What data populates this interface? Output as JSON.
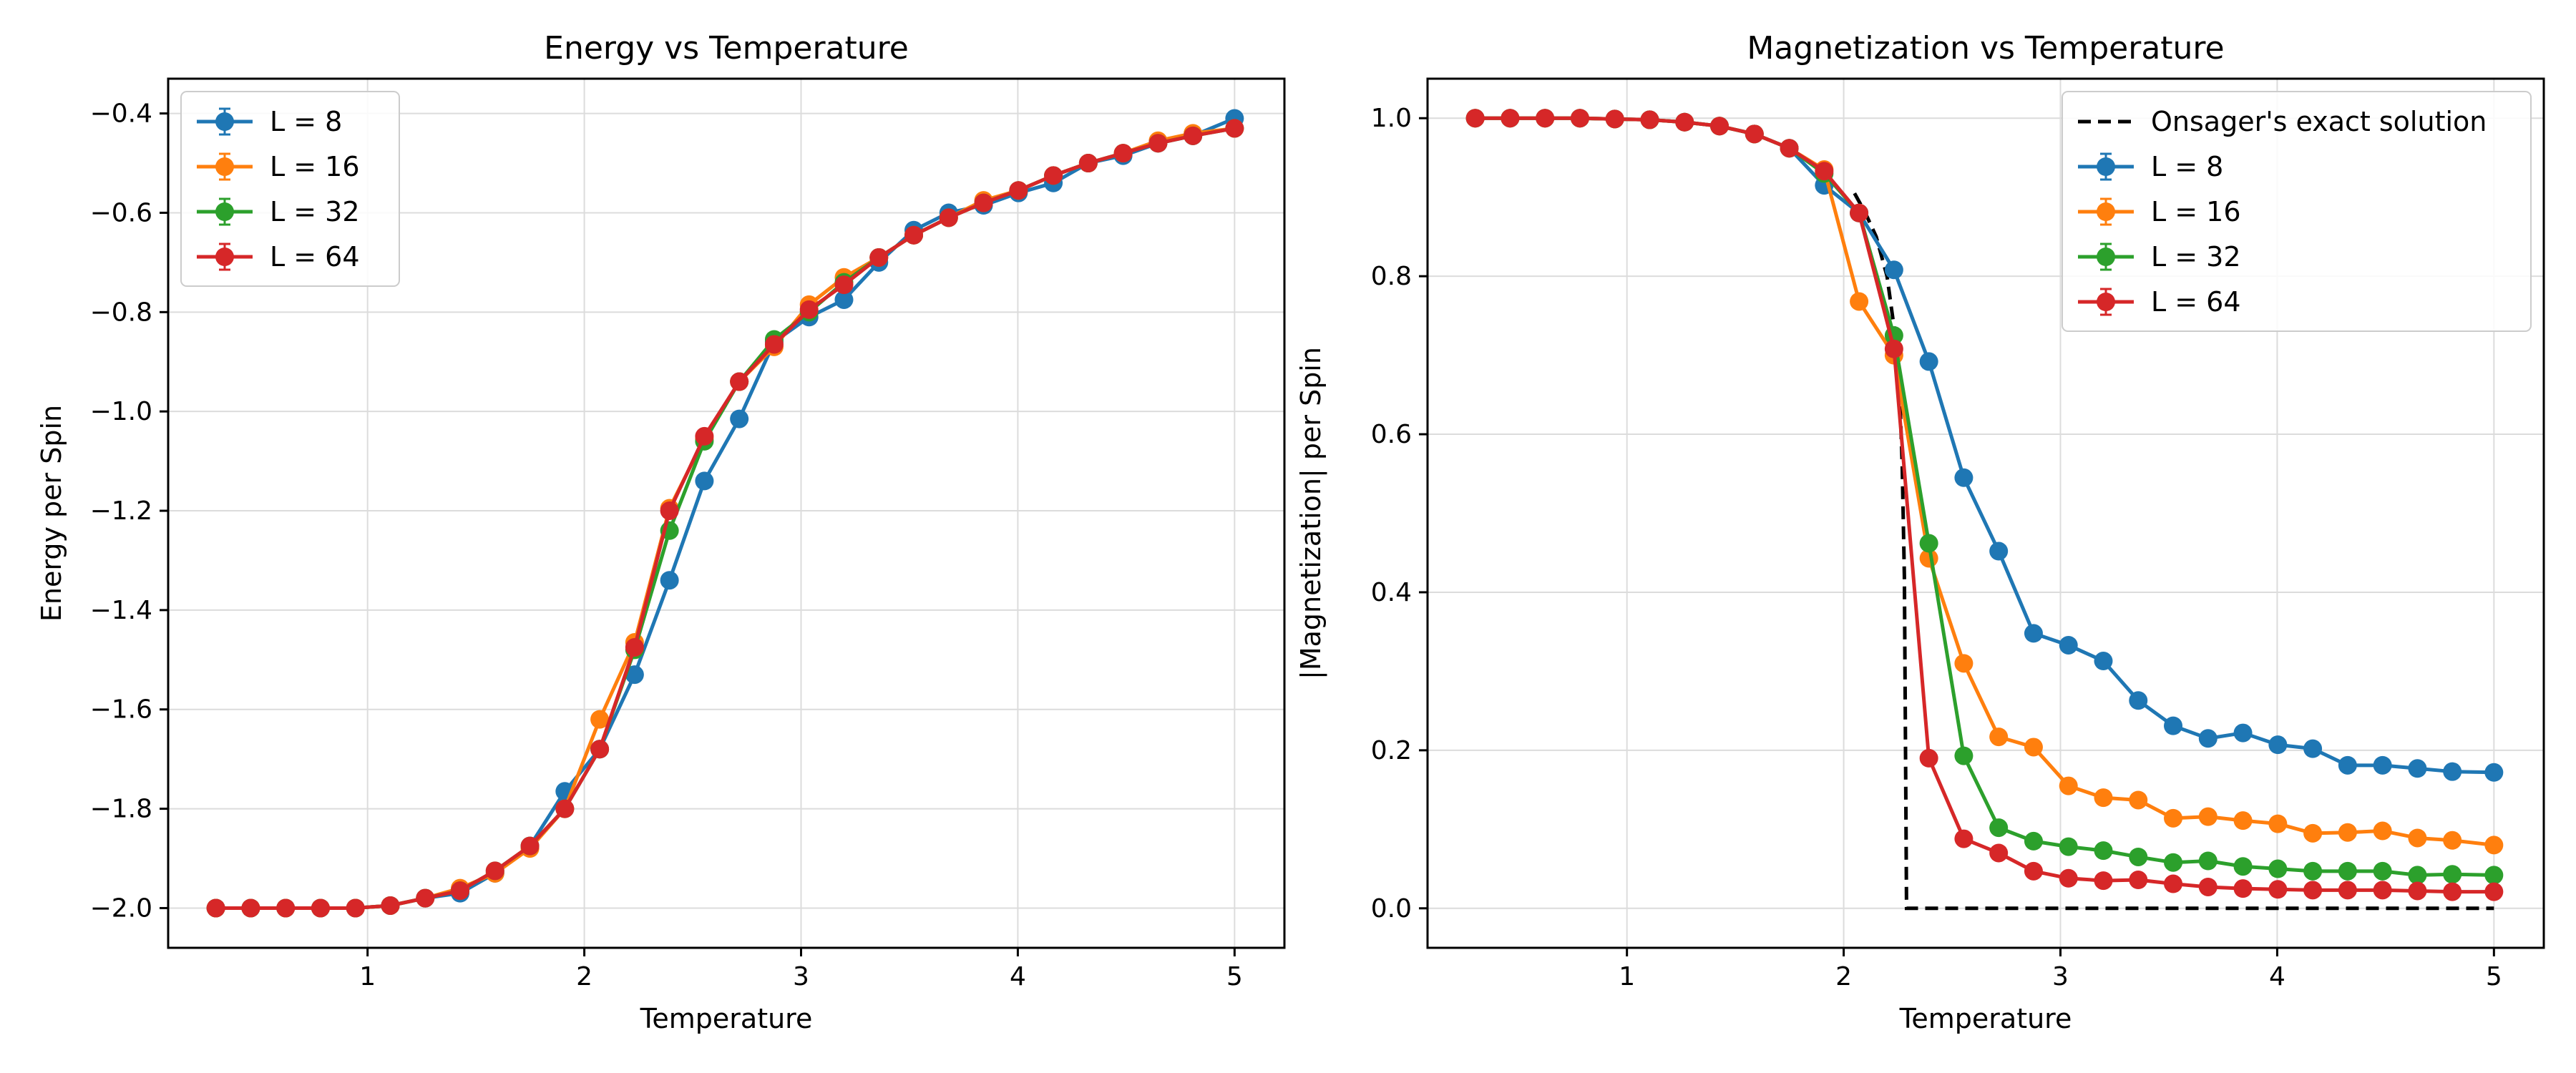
{
  "chart_data": [
    {
      "type": "line",
      "title": "Energy vs Temperature",
      "xlabel": "Temperature",
      "ylabel": "Energy per Spin",
      "xlim": [
        0.08,
        5.23
      ],
      "ylim": [
        -2.08,
        -0.33
      ],
      "xticks": [
        1,
        2,
        3,
        4,
        5
      ],
      "yticks": [
        -2.0,
        -1.8,
        -1.6,
        -1.4,
        -1.2,
        -1.0,
        -0.8,
        -0.6,
        -0.4
      ],
      "ytick_labels": [
        "−2.0",
        "−1.8",
        "−1.6",
        "−1.4",
        "−1.2",
        "−1.0",
        "−0.8",
        "−0.6",
        "−0.4"
      ],
      "grid": true,
      "legend_position": "top-left",
      "x": [
        0.3,
        0.461,
        0.622,
        0.783,
        0.944,
        1.105,
        1.266,
        1.427,
        1.588,
        1.749,
        1.91,
        2.071,
        2.232,
        2.393,
        2.554,
        2.715,
        2.876,
        3.037,
        3.198,
        3.359,
        3.52,
        3.681,
        3.842,
        4.003,
        4.164,
        4.325,
        4.486,
        4.647,
        4.808,
        5.0
      ],
      "series": [
        {
          "name": "L = 8",
          "color": "#1f77b4",
          "values": [
            -2.0,
            -2.0,
            -2.0,
            -2.0,
            -2.0,
            -1.995,
            -1.98,
            -1.97,
            -1.93,
            -1.875,
            -1.765,
            -1.68,
            -1.53,
            -1.34,
            -1.14,
            -1.015,
            -0.86,
            -0.81,
            -0.775,
            -0.7,
            -0.635,
            -0.6,
            -0.585,
            -0.56,
            -0.54,
            -0.5,
            -0.485,
            -0.46,
            -0.445,
            -0.41
          ]
        },
        {
          "name": "L = 16",
          "color": "#ff7f0e",
          "values": [
            -2.0,
            -2.0,
            -2.0,
            -2.0,
            -2.0,
            -1.995,
            -1.98,
            -1.96,
            -1.93,
            -1.88,
            -1.8,
            -1.62,
            -1.465,
            -1.195,
            -1.055,
            -0.94,
            -0.87,
            -0.785,
            -0.73,
            -0.69,
            -0.645,
            -0.61,
            -0.575,
            -0.555,
            -0.525,
            -0.5,
            -0.48,
            -0.455,
            -0.44,
            -0.43
          ]
        },
        {
          "name": "L = 32",
          "color": "#2ca02c",
          "values": [
            -2.0,
            -2.0,
            -2.0,
            -2.0,
            -2.0,
            -1.995,
            -1.98,
            -1.965,
            -1.925,
            -1.875,
            -1.8,
            -1.68,
            -1.48,
            -1.24,
            -1.06,
            -0.94,
            -0.855,
            -0.8,
            -0.74,
            -0.69,
            -0.645,
            -0.61,
            -0.58,
            -0.555,
            -0.525,
            -0.5,
            -0.48,
            -0.46,
            -0.445,
            -0.43
          ]
        },
        {
          "name": "L = 64",
          "color": "#d62728",
          "values": [
            -2.0,
            -2.0,
            -2.0,
            -2.0,
            -2.0,
            -1.995,
            -1.98,
            -1.965,
            -1.925,
            -1.875,
            -1.8,
            -1.68,
            -1.475,
            -1.2,
            -1.05,
            -0.94,
            -0.865,
            -0.795,
            -0.745,
            -0.69,
            -0.645,
            -0.61,
            -0.58,
            -0.555,
            -0.525,
            -0.5,
            -0.48,
            -0.46,
            -0.445,
            -0.43
          ]
        }
      ]
    },
    {
      "type": "line",
      "title": "Magnetization vs Temperature",
      "xlabel": "Temperature",
      "ylabel": "|Magnetization| per Spin",
      "xlim": [
        0.08,
        5.23
      ],
      "ylim": [
        -0.05,
        1.05
      ],
      "xticks": [
        1,
        2,
        3,
        4,
        5
      ],
      "yticks": [
        0.0,
        0.2,
        0.4,
        0.6,
        0.8,
        1.0
      ],
      "ytick_labels": [
        "0.0",
        "0.2",
        "0.4",
        "0.6",
        "0.8",
        "1.0"
      ],
      "grid": true,
      "legend_position": "top-right",
      "x": [
        0.3,
        0.461,
        0.622,
        0.783,
        0.944,
        1.105,
        1.266,
        1.427,
        1.588,
        1.749,
        1.91,
        2.071,
        2.232,
        2.393,
        2.554,
        2.715,
        2.876,
        3.037,
        3.198,
        3.359,
        3.52,
        3.681,
        3.842,
        4.003,
        4.164,
        4.325,
        4.486,
        4.647,
        4.808,
        5.0
      ],
      "series": [
        {
          "name": "L = 8",
          "color": "#1f77b4",
          "values": [
            1.0,
            1.0,
            1.0,
            1.0,
            0.999,
            0.998,
            0.995,
            0.99,
            0.98,
            0.962,
            0.915,
            0.88,
            0.808,
            0.692,
            0.545,
            0.452,
            0.348,
            0.333,
            0.313,
            0.263,
            0.231,
            0.215,
            0.222,
            0.207,
            0.202,
            0.181,
            0.181,
            0.177,
            0.173,
            0.172
          ]
        },
        {
          "name": "L = 16",
          "color": "#ff7f0e",
          "values": [
            1.0,
            1.0,
            1.0,
            1.0,
            0.999,
            0.998,
            0.995,
            0.99,
            0.98,
            0.962,
            0.935,
            0.768,
            0.7,
            0.443,
            0.31,
            0.217,
            0.204,
            0.155,
            0.14,
            0.137,
            0.114,
            0.116,
            0.111,
            0.107,
            0.095,
            0.096,
            0.098,
            0.089,
            0.086,
            0.08
          ]
        },
        {
          "name": "L = 32",
          "color": "#2ca02c",
          "values": [
            1.0,
            1.0,
            1.0,
            1.0,
            0.999,
            0.998,
            0.995,
            0.99,
            0.98,
            0.962,
            0.93,
            0.88,
            0.725,
            0.462,
            0.193,
            0.102,
            0.085,
            0.078,
            0.073,
            0.065,
            0.058,
            0.06,
            0.053,
            0.05,
            0.047,
            0.047,
            0.047,
            0.042,
            0.043,
            0.042
          ]
        },
        {
          "name": "L = 64",
          "color": "#d62728",
          "values": [
            1.0,
            1.0,
            1.0,
            1.0,
            0.999,
            0.998,
            0.995,
            0.99,
            0.98,
            0.962,
            0.933,
            0.88,
            0.708,
            0.19,
            0.088,
            0.07,
            0.047,
            0.038,
            0.035,
            0.036,
            0.031,
            0.027,
            0.025,
            0.024,
            0.023,
            0.023,
            0.023,
            0.022,
            0.021,
            0.021
          ]
        }
      ],
      "reference_line": {
        "name": "Onsager's exact solution",
        "color": "#000000",
        "style": "dashed",
        "x": [
          2.05,
          2.1,
          2.15,
          2.2,
          2.24,
          2.26,
          2.27,
          2.28,
          2.29,
          5.0
        ],
        "y": [
          0.905,
          0.88,
          0.85,
          0.8,
          0.72,
          0.64,
          0.56,
          0.42,
          0.0,
          0.0
        ]
      }
    }
  ]
}
